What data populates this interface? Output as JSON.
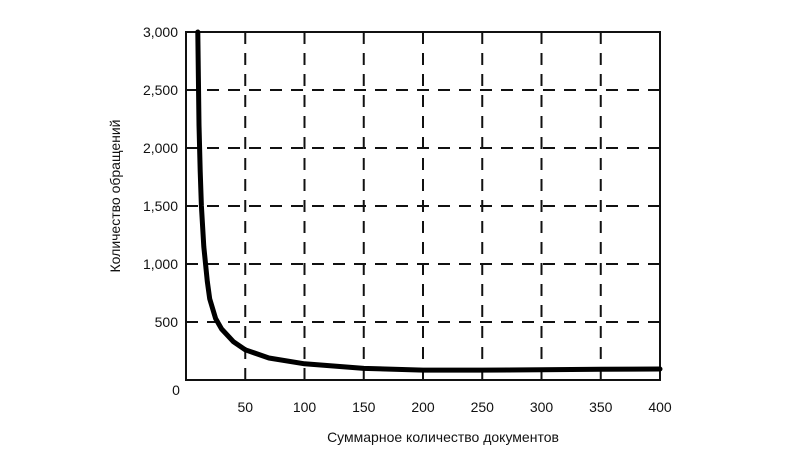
{
  "chart_data": {
    "type": "line",
    "title": "",
    "xlabel": "Суммарное количество документов",
    "ylabel": "Количество обращений",
    "xlim": [
      0,
      400
    ],
    "ylim": [
      0,
      3000
    ],
    "x_ticks": [
      50,
      100,
      150,
      200,
      250,
      300,
      350,
      400
    ],
    "x_tick_labels": [
      "50",
      "100",
      "150",
      "200",
      "250",
      "300",
      "350",
      "400"
    ],
    "y_ticks": [
      0,
      500,
      1000,
      1500,
      2000,
      2500,
      3000
    ],
    "y_tick_labels": [
      "0",
      "500",
      "1,000",
      "1,500",
      "2,000",
      "2,500",
      "3,000"
    ],
    "grid": true,
    "grid_style": "dashed",
    "line_color": "#000000",
    "series": [
      {
        "x": [
          10,
          10.5,
          11,
          12,
          13,
          15,
          18,
          20,
          25,
          30,
          40,
          50,
          70,
          100,
          150,
          200,
          250,
          300,
          350,
          400
        ],
        "y": [
          3000,
          2600,
          2200,
          1800,
          1500,
          1150,
          850,
          700,
          530,
          440,
          330,
          260,
          190,
          140,
          100,
          85,
          85,
          88,
          92,
          95
        ]
      }
    ]
  }
}
